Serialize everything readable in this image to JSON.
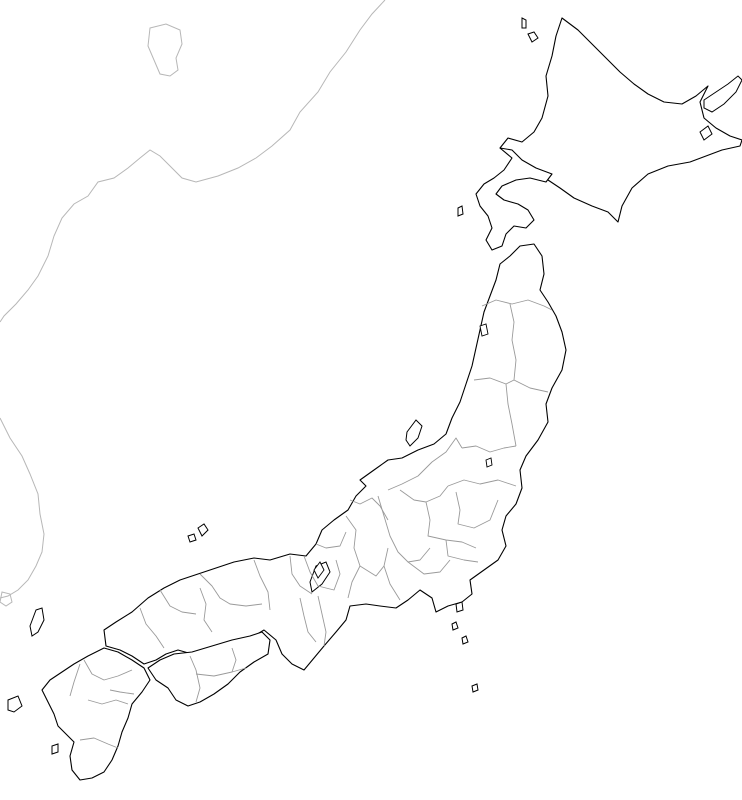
{
  "map": {
    "region": "Japan",
    "background_color": "#ffffff",
    "coastline_color": "#000000",
    "prefecture_border_color": "#9a9a9a",
    "neighbor_coast_color": "#b7b7b7",
    "labels": []
  }
}
